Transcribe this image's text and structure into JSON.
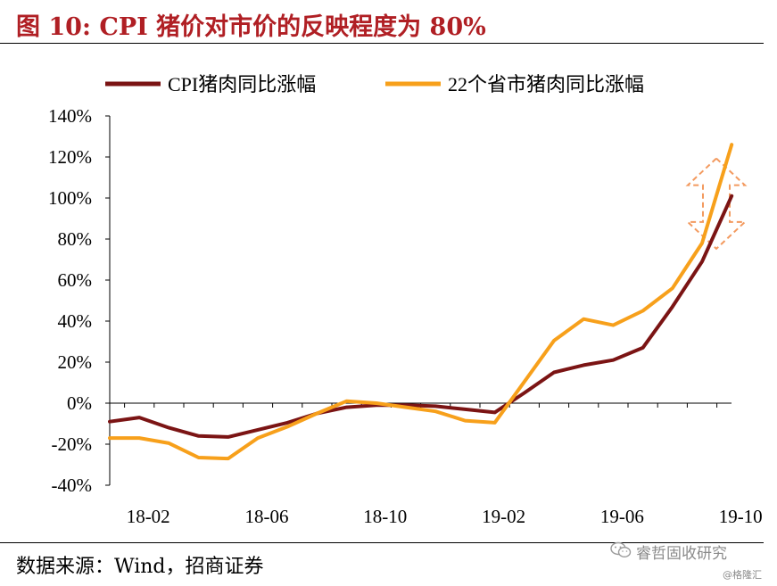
{
  "title": "图 10:  CPI 猪价对市价的反映程度为 80%",
  "source": "数据来源：Wind，招商证券",
  "watermark": {
    "name": "睿哲固收研究",
    "sub": "@格隆汇"
  },
  "chart_data": {
    "type": "line",
    "title": "",
    "xlabel": "",
    "ylabel": "",
    "ylim": [
      -40,
      140
    ],
    "yticks": [
      "-40%",
      "-20%",
      "0%",
      "20%",
      "40%",
      "60%",
      "80%",
      "100%",
      "120%",
      "140%"
    ],
    "xticks": [
      "18-02",
      "18-06",
      "18-10",
      "19-02",
      "19-06",
      "19-10"
    ],
    "legend_position": "top",
    "grid": false,
    "x": [
      "18-01",
      "18-02",
      "18-03",
      "18-04",
      "18-05",
      "18-06",
      "18-07",
      "18-08",
      "18-09",
      "18-10",
      "18-11",
      "18-12",
      "19-01",
      "19-02",
      "19-03",
      "19-04",
      "19-05",
      "19-06",
      "19-07",
      "19-08",
      "19-09",
      "19-10"
    ],
    "series": [
      {
        "name": "CPI猪肉同比涨幅",
        "color": "#7b1414",
        "values": [
          -9,
          -7,
          -12,
          -16,
          -16.5,
          -13,
          -9.5,
          -5,
          -2,
          -1,
          -1,
          -1.5,
          -3,
          -4.5,
          5,
          15,
          18.5,
          21,
          27,
          47,
          69,
          101
        ]
      },
      {
        "name": "22个省市猪肉同比涨幅",
        "color": "#f7a01b",
        "values": [
          -17,
          -17,
          -19.5,
          -26.5,
          -27,
          -17,
          -11.5,
          -5,
          1,
          0,
          -2,
          -4,
          -8.5,
          -9.5,
          10.5,
          30.5,
          41,
          38,
          45,
          56,
          78,
          126
        ]
      }
    ],
    "annotation": {
      "type": "double-arrow",
      "color": "#f39a5f",
      "from": 77,
      "to": 128
    }
  }
}
